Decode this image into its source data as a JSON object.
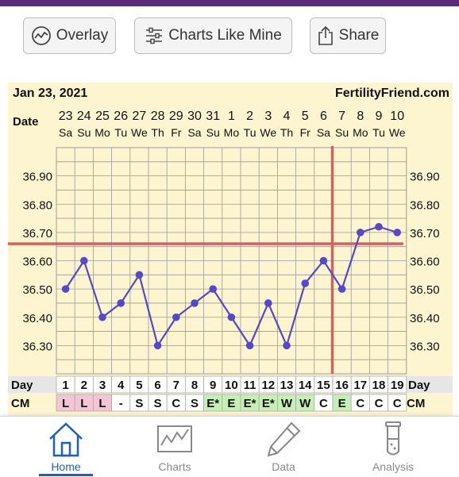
{
  "toolbar": {
    "overlay_label": "Overlay",
    "charts_like_mine_label": "Charts Like Mine",
    "share_label": "Share"
  },
  "chart_header": {
    "date": "Jan 23, 2021",
    "site": "FertilityFriend.com"
  },
  "chart_data": {
    "type": "line",
    "date_label": "Date",
    "dates": [
      "23",
      "24",
      "25",
      "26",
      "27",
      "28",
      "29",
      "30",
      "31",
      "1",
      "2",
      "3",
      "4",
      "5",
      "6",
      "7",
      "8",
      "9",
      "10"
    ],
    "weekdays": [
      "Sa",
      "Su",
      "Mo",
      "Tu",
      "We",
      "Th",
      "Fr",
      "Sa",
      "Su",
      "Mo",
      "Tu",
      "We",
      "Th",
      "Fr",
      "Sa",
      "Su",
      "Mo",
      "Tu",
      "We"
    ],
    "y_ticks": [
      "36.90",
      "36.80",
      "36.70",
      "36.60",
      "36.50",
      "36.40",
      "36.30"
    ],
    "ylim": [
      36.2,
      37.0
    ],
    "temperatures": [
      36.5,
      36.6,
      36.4,
      36.45,
      36.55,
      36.3,
      36.4,
      36.45,
      36.5,
      36.4,
      36.3,
      36.45,
      36.3,
      36.52,
      36.6,
      36.5,
      36.7,
      36.72,
      36.7
    ],
    "coverline": 36.66,
    "ovulation_day": 16,
    "day_label": "Day",
    "days": [
      "1",
      "2",
      "3",
      "4",
      "5",
      "6",
      "7",
      "8",
      "9",
      "10",
      "11",
      "12",
      "13",
      "14",
      "15",
      "16",
      "17",
      "18",
      "19"
    ],
    "cm_label": "CM",
    "cm": [
      "L",
      "L",
      "L",
      "-",
      "S",
      "S",
      "C",
      "S",
      "E*",
      "E",
      "E*",
      "E*",
      "W",
      "W",
      "C",
      "E",
      "C",
      "C",
      "C"
    ],
    "cm_colors": [
      "#f3c6d6",
      "#f3c6d6",
      "#f3c6d6",
      "#ffffff",
      "#ffffff",
      "#ffffff",
      "#ffffff",
      "#ffffff",
      "#c6efb8",
      "#c6efb8",
      "#c6efb8",
      "#c6efb8",
      "#c6efb8",
      "#c6efb8",
      "#ffffff",
      "#c6efb8",
      "#ffffff",
      "#ffffff",
      "#ffffff"
    ],
    "colors": {
      "line": "#5747c9",
      "coverline": "#d46060",
      "grid": "#9a9a9a",
      "background": "#fdf5cf"
    }
  },
  "nav": {
    "home": "Home",
    "charts": "Charts",
    "data": "Data",
    "analysis": "Analysis"
  }
}
